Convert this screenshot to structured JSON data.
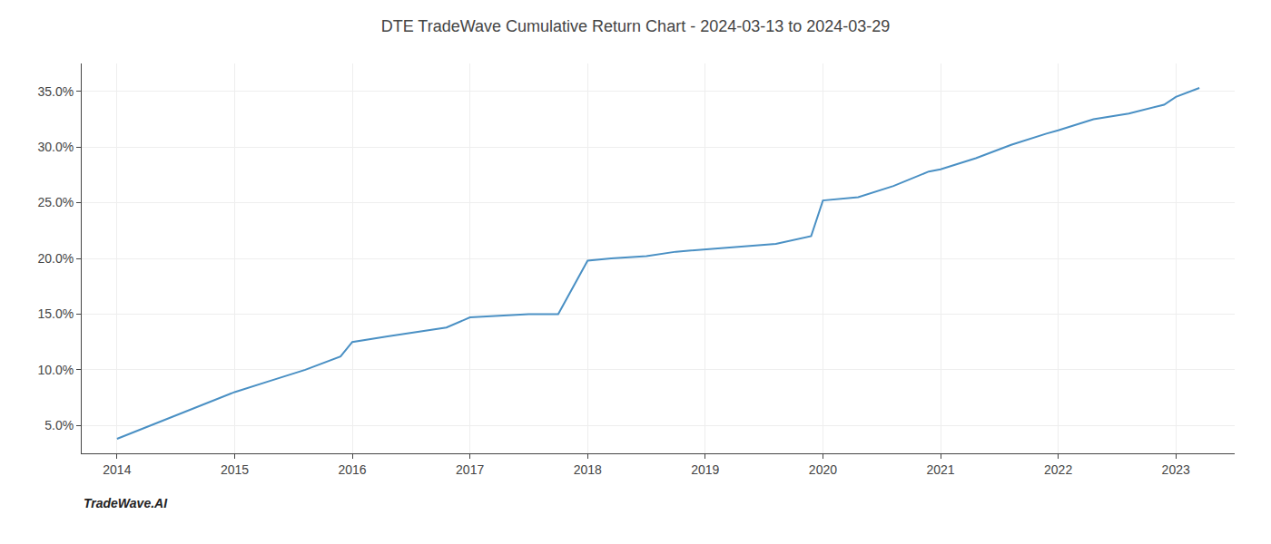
{
  "chart_data": {
    "type": "line",
    "title": "DTE TradeWave Cumulative Return Chart - 2024-03-13 to 2024-03-29",
    "annotations": [
      "TradeWave.AI"
    ],
    "x": [
      2014.0,
      2014.4,
      2014.8,
      2015.0,
      2015.3,
      2015.6,
      2015.9,
      2016.0,
      2016.3,
      2016.5,
      2016.8,
      2017.0,
      2017.2,
      2017.5,
      2017.75,
      2018.0,
      2018.2,
      2018.5,
      2018.75,
      2019.0,
      2019.3,
      2019.6,
      2019.9,
      2020.0,
      2020.3,
      2020.6,
      2020.9,
      2021.0,
      2021.3,
      2021.6,
      2021.9,
      2022.0,
      2022.3,
      2022.6,
      2022.9,
      2023.0,
      2023.2
    ],
    "values": [
      3.8,
      5.5,
      7.2,
      8.0,
      9.0,
      10.0,
      11.2,
      12.5,
      13.0,
      13.3,
      13.8,
      14.7,
      14.8,
      15.0,
      15.0,
      19.8,
      20.0,
      20.2,
      20.6,
      20.8,
      21.0,
      21.3,
      22.0,
      25.2,
      25.5,
      26.5,
      27.8,
      28.0,
      29.0,
      30.2,
      31.2,
      31.5,
      32.5,
      33.0,
      33.8,
      34.5,
      35.3
    ],
    "color": "#4a90c4",
    "xlim": [
      2013.7,
      2023.5
    ],
    "ylim": [
      2.5,
      37.5
    ],
    "xticks": [
      2014,
      2015,
      2016,
      2017,
      2018,
      2019,
      2020,
      2021,
      2022,
      2023
    ],
    "yticks": [
      {
        "value": 5.0,
        "label": "5.0%"
      },
      {
        "value": 10.0,
        "label": "10.0%"
      },
      {
        "value": 15.0,
        "label": "15.0%"
      },
      {
        "value": 20.0,
        "label": "20.0%"
      },
      {
        "value": 25.0,
        "label": "25.0%"
      },
      {
        "value": 30.0,
        "label": "30.0%"
      },
      {
        "value": 35.0,
        "label": "35.0%"
      }
    ],
    "grid": true
  }
}
